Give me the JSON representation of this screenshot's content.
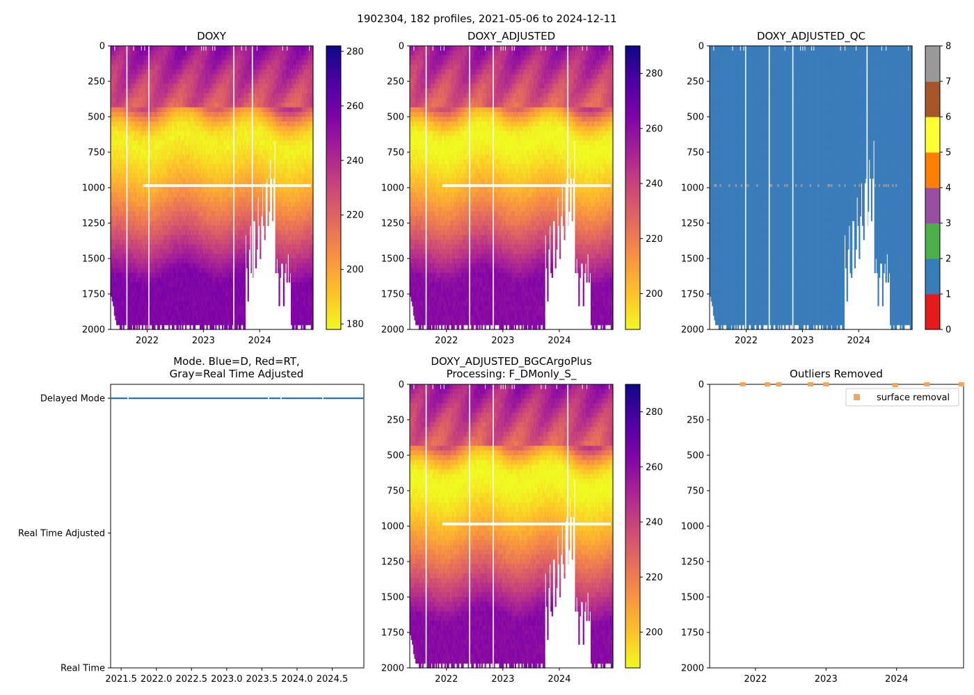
{
  "figure": {
    "suptitle": "1902304, 182 profiles, 2021-05-06 to 2024-12-11"
  },
  "chart_data": [
    {
      "id": "doxy",
      "type": "heatmap",
      "title": "DOXY",
      "x_ticks": [
        "2022",
        "2023",
        "2024"
      ],
      "x_range": [
        2021.35,
        2024.95
      ],
      "y_ticks": [
        "0",
        "250",
        "500",
        "750",
        "1000",
        "1250",
        "1500",
        "1750",
        "2000"
      ],
      "ylim": [
        0,
        2000
      ],
      "colorbar": {
        "cmap": "plasma_r",
        "ticks": [
          "180",
          "200",
          "220",
          "240",
          "260",
          "280"
        ],
        "range": [
          178,
          282
        ]
      },
      "gaps_x": [
        2021.63,
        2022.02,
        2023.53,
        2023.86
      ],
      "missing_band_depth": 985,
      "deep_gap_range": [
        2023.98,
        2024.25
      ]
    },
    {
      "id": "doxy_adjusted",
      "type": "heatmap",
      "title": "DOXY_ADJUSTED",
      "x_ticks": [
        "2022",
        "2023",
        "2024"
      ],
      "x_range": [
        2021.35,
        2024.95
      ],
      "y_ticks": [
        "0",
        "250",
        "500",
        "750",
        "1000",
        "1250",
        "1500",
        "1750",
        "2000"
      ],
      "ylim": [
        0,
        2000
      ],
      "colorbar": {
        "cmap": "plasma_r",
        "ticks": [
          "200",
          "220",
          "240",
          "260",
          "280"
        ],
        "range": [
          187,
          290
        ]
      },
      "gaps_x": [
        2021.63,
        2022.4,
        2022.82,
        2024.14
      ],
      "missing_band_depth": 985,
      "deep_gap_range": [
        2023.98,
        2024.25
      ]
    },
    {
      "id": "doxy_adjusted_qc",
      "type": "heatmap",
      "title": "DOXY_ADJUSTED_QC",
      "x_ticks": [
        "2022",
        "2023",
        "2024"
      ],
      "x_range": [
        2021.35,
        2024.95
      ],
      "y_ticks": [
        "0",
        "250",
        "500",
        "750",
        "1000",
        "1250",
        "1500",
        "1750",
        "2000"
      ],
      "ylim": [
        0,
        2000
      ],
      "colorbar": {
        "categories": [
          "0",
          "1",
          "2",
          "3",
          "4",
          "5",
          "6",
          "7",
          "8"
        ],
        "colors": [
          "#e41a1c",
          "#377eb8",
          "#4daf4a",
          "#984ea3",
          "#ff7f00",
          "#ffff33",
          "#a65628",
          "#f781bf",
          "#999999"
        ]
      },
      "fill_color": "#3a7dbb",
      "flag_color": "#999999",
      "gaps_x": [
        2021.98,
        2022.4,
        2022.82,
        2024.14
      ],
      "missing_band_depth": 985,
      "deep_gap_range": [
        2023.98,
        2024.25
      ]
    },
    {
      "id": "mode",
      "type": "scatter",
      "title_line1": "Mode. Blue=D, Red=RT,",
      "title_line2": "Gray=Real Time Adjusted",
      "x_ticks": [
        "2021.5",
        "2022.0",
        "2022.5",
        "2023.0",
        "2023.5",
        "2024.0",
        "2024.5"
      ],
      "x_values": [
        2021.5,
        2022.0,
        2022.5,
        2023.0,
        2023.5,
        2024.0,
        2024.5
      ],
      "x_range": [
        2021.35,
        2024.95
      ],
      "y_categories": [
        "Delayed Mode",
        "Real Time Adjusted",
        "Real Time"
      ],
      "series": [
        {
          "name": "D",
          "color": "#1f77b4",
          "y": "Delayed Mode",
          "count": 182
        }
      ]
    },
    {
      "id": "doxy_bgc",
      "type": "heatmap",
      "title_line1": "DOXY_ADJUSTED_BGCArgoPlus",
      "title_line2": "Processing: F_DMonly_S_",
      "x_ticks": [
        "2022",
        "2023",
        "2024"
      ],
      "x_range": [
        2021.35,
        2024.95
      ],
      "y_ticks": [
        "0",
        "250",
        "500",
        "750",
        "1000",
        "1250",
        "1500",
        "1750",
        "2000"
      ],
      "ylim": [
        0,
        2000
      ],
      "colorbar": {
        "cmap": "plasma_r",
        "ticks": [
          "200",
          "220",
          "240",
          "260",
          "280"
        ],
        "range": [
          187,
          290
        ]
      },
      "gaps_x": [
        2021.63,
        2022.4,
        2022.82,
        2024.14
      ],
      "missing_band_depth": 985,
      "deep_gap_range": [
        2023.98,
        2024.25
      ]
    },
    {
      "id": "outliers",
      "type": "scatter",
      "title": "Outliers Removed",
      "x_ticks": [
        "2022",
        "2023",
        "2024"
      ],
      "x_range": [
        2021.35,
        2024.95
      ],
      "y_ticks": [
        "0",
        "250",
        "500",
        "750",
        "1000",
        "1250",
        "1500",
        "1750",
        "2000"
      ],
      "ylim": [
        0,
        2000
      ],
      "series": [
        {
          "name": "surface removal",
          "color": "#f5a55a",
          "points": [
            [
              2021.82,
              0
            ],
            [
              2022.17,
              0
            ],
            [
              2022.33,
              0
            ],
            [
              2022.78,
              0
            ],
            [
              2023.0,
              0
            ],
            [
              2023.98,
              5
            ],
            [
              2024.43,
              0
            ],
            [
              2024.92,
              0
            ]
          ]
        }
      ],
      "legend": "surface removal"
    }
  ]
}
